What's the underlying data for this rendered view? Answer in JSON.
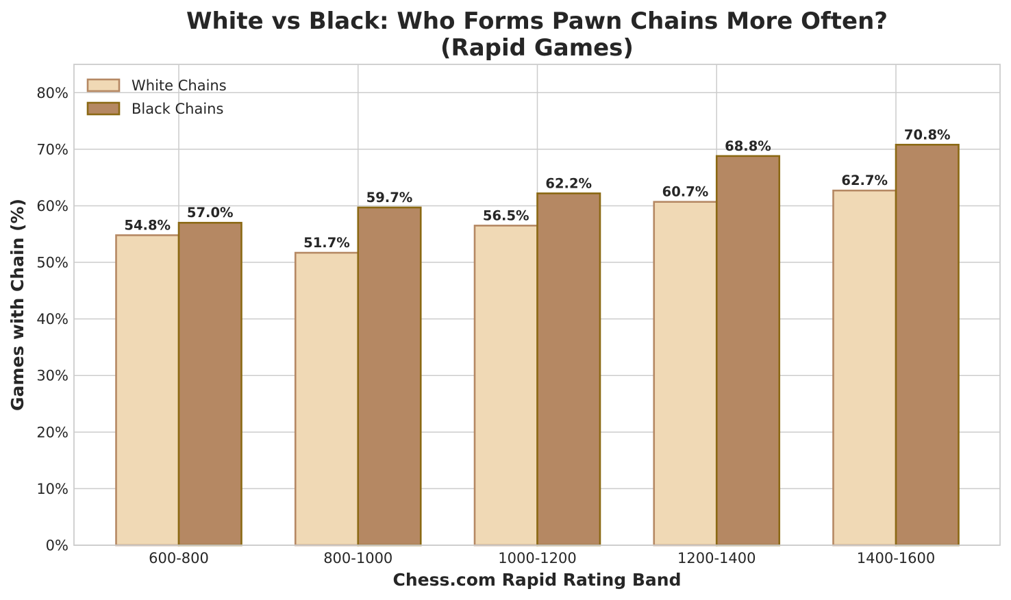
{
  "chart_data": {
    "type": "bar",
    "title": "White vs Black: Who Forms Pawn Chains More Often?",
    "subtitle": "(Rapid Games)",
    "xlabel": "Chess.com Rapid Rating Band",
    "ylabel": "Games with Chain (%)",
    "categories": [
      "600-800",
      "800-1000",
      "1000-1200",
      "1200-1400",
      "1400-1600"
    ],
    "series": [
      {
        "name": "White Chains",
        "values": [
          54.8,
          51.7,
          56.5,
          60.7,
          62.7
        ],
        "fill": "#f0d9b5",
        "edge": "#b58863"
      },
      {
        "name": "Black Chains",
        "values": [
          57.0,
          59.7,
          62.2,
          68.8,
          70.8
        ],
        "fill": "#b58863",
        "edge": "#8b6914"
      }
    ],
    "ylim": [
      0,
      85
    ],
    "yticks": [
      0,
      10,
      20,
      30,
      40,
      50,
      60,
      70,
      80
    ],
    "tick_suffix": "%",
    "value_suffix": "%",
    "grid": true,
    "legend_position": "top-left"
  }
}
